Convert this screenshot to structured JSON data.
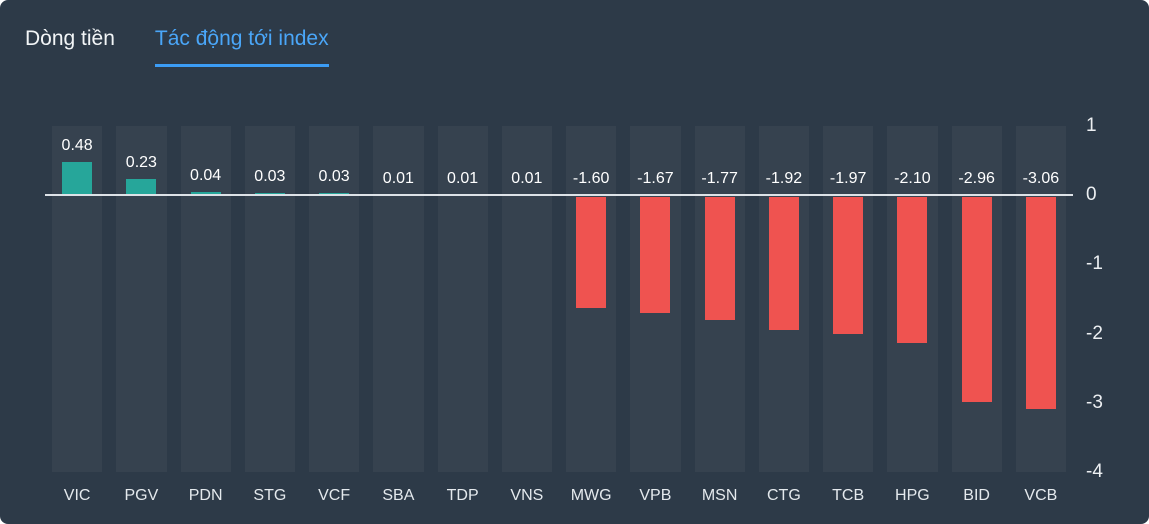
{
  "tabs": {
    "flow": {
      "label": "Dòng tiền",
      "active": false
    },
    "impact": {
      "label": "Tác động tới index",
      "active": true
    }
  },
  "chart_data": {
    "type": "bar",
    "title": "Tác động tới index",
    "categories": [
      "VIC",
      "PGV",
      "PDN",
      "STG",
      "VCF",
      "SBA",
      "TDP",
      "VNS",
      "MWG",
      "VPB",
      "MSN",
      "CTG",
      "TCB",
      "HPG",
      "BID",
      "VCB"
    ],
    "values": [
      0.48,
      0.23,
      0.04,
      0.03,
      0.03,
      0.01,
      0.01,
      0.01,
      -1.6,
      -1.67,
      -1.77,
      -1.92,
      -1.97,
      -2.1,
      -2.96,
      -3.06
    ],
    "value_labels": [
      "0.48",
      "0.23",
      "0.04",
      "0.03",
      "0.03",
      "0.01",
      "0.01",
      "0.01",
      "-1.60",
      "-1.67",
      "-1.77",
      "-1.92",
      "-1.97",
      "-2.10",
      "-2.96",
      "-3.06"
    ],
    "y_ticks": [
      1,
      0,
      -1,
      -2,
      -3,
      -4
    ],
    "ylim": [
      -4,
      1
    ],
    "xlabel": "",
    "ylabel": "",
    "grid": false,
    "legend": false,
    "colors": {
      "positive": "#26a69a",
      "negative": "#ef5350",
      "zero_line": "#dde2e7",
      "band": "rgba(255,255,255,0.045)"
    }
  },
  "theme": {
    "background": "#2d3a48",
    "tab_active": "#4aa6f8",
    "tab_underline": "#3b9cf5",
    "tab_inactive": "#f2f5f7"
  }
}
